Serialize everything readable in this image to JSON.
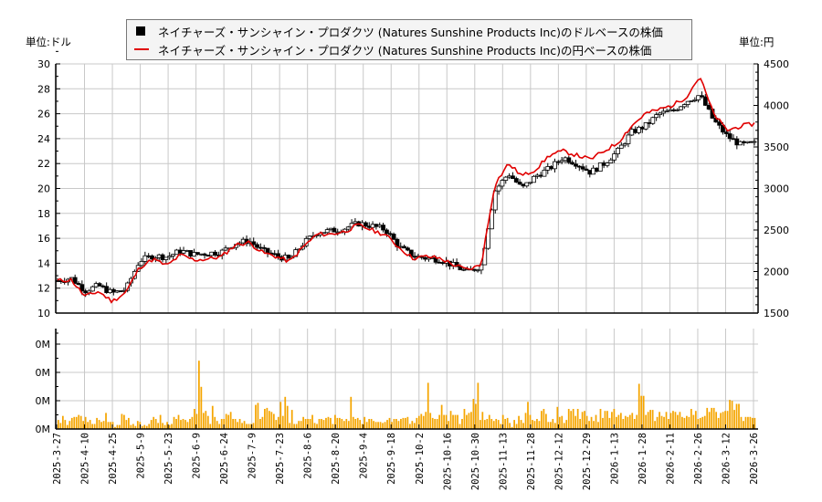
{
  "legend": {
    "usd_label": "ネイチャーズ・サンシャイン・プロダクツ (Natures Sunshine Products Inc)のドルベースの株価",
    "jpy_label": "ネイチャーズ・サンシャイン・プロダクツ (Natures Sunshine Products Inc)の円ベースの株価"
  },
  "units": {
    "left": "単位:ドル",
    "right": "単位:円"
  },
  "colors": {
    "usd": "#000000",
    "jpy": "#e00000",
    "volume": "#f5a500",
    "grid": "#c8c8c8"
  },
  "chart_data": [
    {
      "type": "line",
      "title": "ネイチャーズ・サンシャイン・プロダクツ (Natures Sunshine Products Inc) 株価",
      "xlabel": "",
      "ylabel_left": "単位:ドル",
      "ylabel_right": "単位:円",
      "ylim_left": [
        10,
        30
      ],
      "ylim_right": [
        1500,
        4500
      ],
      "yticks_left": [
        10,
        12,
        14,
        16,
        18,
        20,
        22,
        24,
        26,
        28,
        30
      ],
      "yticks_right": [
        1500,
        2000,
        2500,
        3000,
        3500,
        4000,
        4500
      ],
      "grid": true,
      "legend_position": "top",
      "x_ticks": [
        "2025-3-27",
        "2025-4-10",
        "2025-4-25",
        "2025-5-9",
        "2025-5-23",
        "2025-6-9",
        "2025-6-24",
        "2025-7-9",
        "2025-7-23",
        "2025-8-6",
        "2025-8-20",
        "2025-9-4",
        "2025-9-18",
        "2025-10-2",
        "2025-10-16",
        "2025-10-30",
        "2025-11-13",
        "2025-11-28",
        "2025-12-12",
        "2025-12-29",
        "2026-1-13",
        "2026-1-28",
        "2026-2-11",
        "2026-2-26",
        "2026-3-12",
        "2026-3-26"
      ],
      "x": [
        "2025-3-27",
        "2025-4-3",
        "2025-4-10",
        "2025-4-17",
        "2025-4-25",
        "2025-5-2",
        "2025-5-9",
        "2025-5-16",
        "2025-5-23",
        "2025-5-30",
        "2025-6-9",
        "2025-6-16",
        "2025-6-24",
        "2025-7-1",
        "2025-7-9",
        "2025-7-16",
        "2025-7-23",
        "2025-7-30",
        "2025-8-6",
        "2025-8-13",
        "2025-8-20",
        "2025-8-27",
        "2025-9-4",
        "2025-9-11",
        "2025-9-18",
        "2025-9-25",
        "2025-10-2",
        "2025-10-9",
        "2025-10-16",
        "2025-10-23",
        "2025-10-30",
        "2025-11-6",
        "2025-11-10",
        "2025-11-13",
        "2025-11-20",
        "2025-11-28",
        "2025-12-5",
        "2025-12-12",
        "2025-12-19",
        "2025-12-29",
        "2026-1-6",
        "2026-1-13",
        "2026-1-20",
        "2026-1-28",
        "2026-2-4",
        "2026-2-11",
        "2026-2-18",
        "2026-2-26",
        "2026-3-5",
        "2026-3-12",
        "2026-3-19",
        "2026-3-26"
      ],
      "series": [
        {
          "name": "ドルベースの株価",
          "axis": "left",
          "values": [
            12.6,
            12.8,
            11.8,
            12.2,
            11.6,
            11.9,
            14.2,
            14.6,
            14.5,
            15.0,
            14.7,
            14.8,
            14.9,
            15.6,
            15.8,
            15.0,
            14.6,
            14.3,
            15.6,
            16.5,
            16.6,
            16.8,
            17.2,
            17.0,
            16.7,
            15.3,
            14.6,
            14.4,
            14.3,
            13.8,
            13.3,
            13.8,
            19.8,
            21.2,
            20.0,
            21.0,
            21.6,
            22.5,
            22.0,
            21.3,
            22.0,
            23.0,
            24.5,
            25.0,
            26.0,
            26.2,
            27.0,
            27.5,
            25.5,
            24.2,
            23.5,
            23.6
          ]
        },
        {
          "name": "円ベースの株価",
          "axis": "right",
          "values": [
            1890,
            1900,
            1700,
            1760,
            1640,
            1750,
            2050,
            2150,
            2070,
            2200,
            2140,
            2150,
            2180,
            2320,
            2350,
            2230,
            2180,
            2120,
            2300,
            2450,
            2450,
            2480,
            2560,
            2500,
            2440,
            2290,
            2160,
            2180,
            2160,
            2080,
            2020,
            2080,
            3050,
            3300,
            3150,
            3230,
            3400,
            3450,
            3400,
            3350,
            3450,
            3550,
            3750,
            3900,
            3950,
            4000,
            4100,
            4350,
            3900,
            3700,
            3750,
            3780
          ]
        }
      ]
    },
    {
      "type": "bar",
      "title": "出来高",
      "ylabel": "",
      "ytick_labels": [
        "0M",
        "0M",
        "0M",
        "0M"
      ],
      "x_ticks": [
        "2025-3-27",
        "2025-4-10",
        "2025-4-25",
        "2025-5-9",
        "2025-5-23",
        "2025-6-9",
        "2025-6-24",
        "2025-7-9",
        "2025-7-23",
        "2025-8-6",
        "2025-8-20",
        "2025-9-4",
        "2025-9-18",
        "2025-10-2",
        "2025-10-16",
        "2025-10-30",
        "2025-11-13",
        "2025-11-28",
        "2025-12-12",
        "2025-12-29",
        "2026-1-13",
        "2026-1-28",
        "2026-2-11",
        "2026-2-26",
        "2026-3-12",
        "2026-3-26"
      ],
      "values_relative": [
        0.09,
        0.06,
        0.13,
        0.09,
        0.04,
        0.08,
        0.11,
        0.12,
        0.12,
        0.14,
        0.13,
        0.08,
        0.12,
        0.07,
        0.09,
        0.05,
        0.05,
        0.11,
        0.09,
        0.07,
        0.08,
        0.16,
        0.07,
        0.07,
        0.07,
        0.02,
        0.04,
        0.04,
        0.15,
        0.14,
        0.09,
        0.11,
        0.04,
        0.05,
        0.03,
        0.08,
        0.07,
        0.03,
        0.04,
        0.03,
        0.05,
        0.09,
        0.12,
        0.1,
        0.06,
        0.14,
        0.06,
        0.04,
        0.07,
        0.04,
        0.05,
        0.12,
        0.1,
        0.14,
        0.09,
        0.1,
        0.09,
        0.07,
        0.1,
        0.12,
        0.2,
        0.15,
        0.68,
        0.42,
        0.16,
        0.18,
        0.13,
        0.05,
        0.23,
        0.12,
        0.08,
        0.05,
        0.1,
        0.1,
        0.15,
        0.14,
        0.17,
        0.1,
        0.1,
        0.07,
        0.1,
        0.06,
        0.08,
        0.05,
        0.05,
        0.05,
        0.06,
        0.24,
        0.26,
        0.1,
        0.12,
        0.2,
        0.21,
        0.18,
        0.17,
        0.15,
        0.09,
        0.12,
        0.27,
        0.13,
        0.32,
        0.23,
        0.06,
        0.19,
        0.05,
        0.05,
        0.08,
        0.08,
        0.12,
        0.1,
        0.1,
        0.1,
        0.14,
        0.06,
        0.05,
        0.1,
        0.1,
        0.09,
        0.11,
        0.12,
        0.11,
        0.05,
        0.14,
        0.11,
        0.11,
        0.1,
        0.08,
        0.1,
        0.08,
        0.32,
        0.12,
        0.1,
        0.11,
        0.09,
        0.05,
        0.12,
        0.07,
        0.1,
        0.1,
        0.08,
        0.07,
        0.07,
        0.07,
        0.06,
        0.07,
        0.09,
        0.11,
        0.07,
        0.1,
        0.1,
        0.08,
        0.1,
        0.11,
        0.11,
        0.12,
        0.05,
        0.08,
        0.06,
        0.11,
        0.13,
        0.15,
        0.13,
        0.17,
        0.46,
        0.16,
        0.11,
        0.1,
        0.1,
        0.14,
        0.24,
        0.14,
        0.14,
        0.08,
        0.18,
        0.14,
        0.14,
        0.14,
        0.05,
        0.1,
        0.2,
        0.14,
        0.16,
        0.17,
        0.3,
        0.25,
        0.46,
        0.09,
        0.17,
        0.09,
        0.1,
        0.14,
        0.1,
        0.08,
        0.1,
        0.09,
        0.05,
        0.14,
        0.1,
        0.11,
        0.06,
        0.02,
        0.09,
        0.05,
        0.13,
        0.09,
        0.06,
        0.16,
        0.27,
        0.14,
        0.09,
        0.08,
        0.1,
        0.08,
        0.18,
        0.2,
        0.15,
        0.07,
        0.07,
        0.1,
        0.06,
        0.22,
        0.12,
        0.13,
        0.06,
        0.09,
        0.2,
        0.18,
        0.2,
        0.13,
        0.2,
        0.1,
        0.17,
        0.18,
        0.13,
        0.08,
        0.12,
        0.08,
        0.14,
        0.07,
        0.2,
        0.11,
        0.18,
        0.18,
        0.11,
        0.17,
        0.2,
        0.12,
        0.14,
        0.16,
        0.1,
        0.13,
        0.12,
        0.14,
        0.16,
        0.1,
        0.14,
        0.45,
        0.33,
        0.33,
        0.14,
        0.17,
        0.19,
        0.19,
        0.08,
        0.12,
        0.17,
        0.13,
        0.12,
        0.17,
        0.1,
        0.16,
        0.18,
        0.17,
        0.14,
        0.17,
        0.12,
        0.11,
        0.13,
        0.12,
        0.2,
        0.14,
        0.18,
        0.1,
        0.11,
        0.12,
        0.13,
        0.21,
        0.17,
        0.21,
        0.21,
        0.17,
        0.11,
        0.16,
        0.17,
        0.18,
        0.18,
        0.29,
        0.28,
        0.19,
        0.25,
        0.25,
        0.12,
        0.08,
        0.12,
        0.12,
        0.12,
        0.11,
        0.11
      ]
    }
  ]
}
